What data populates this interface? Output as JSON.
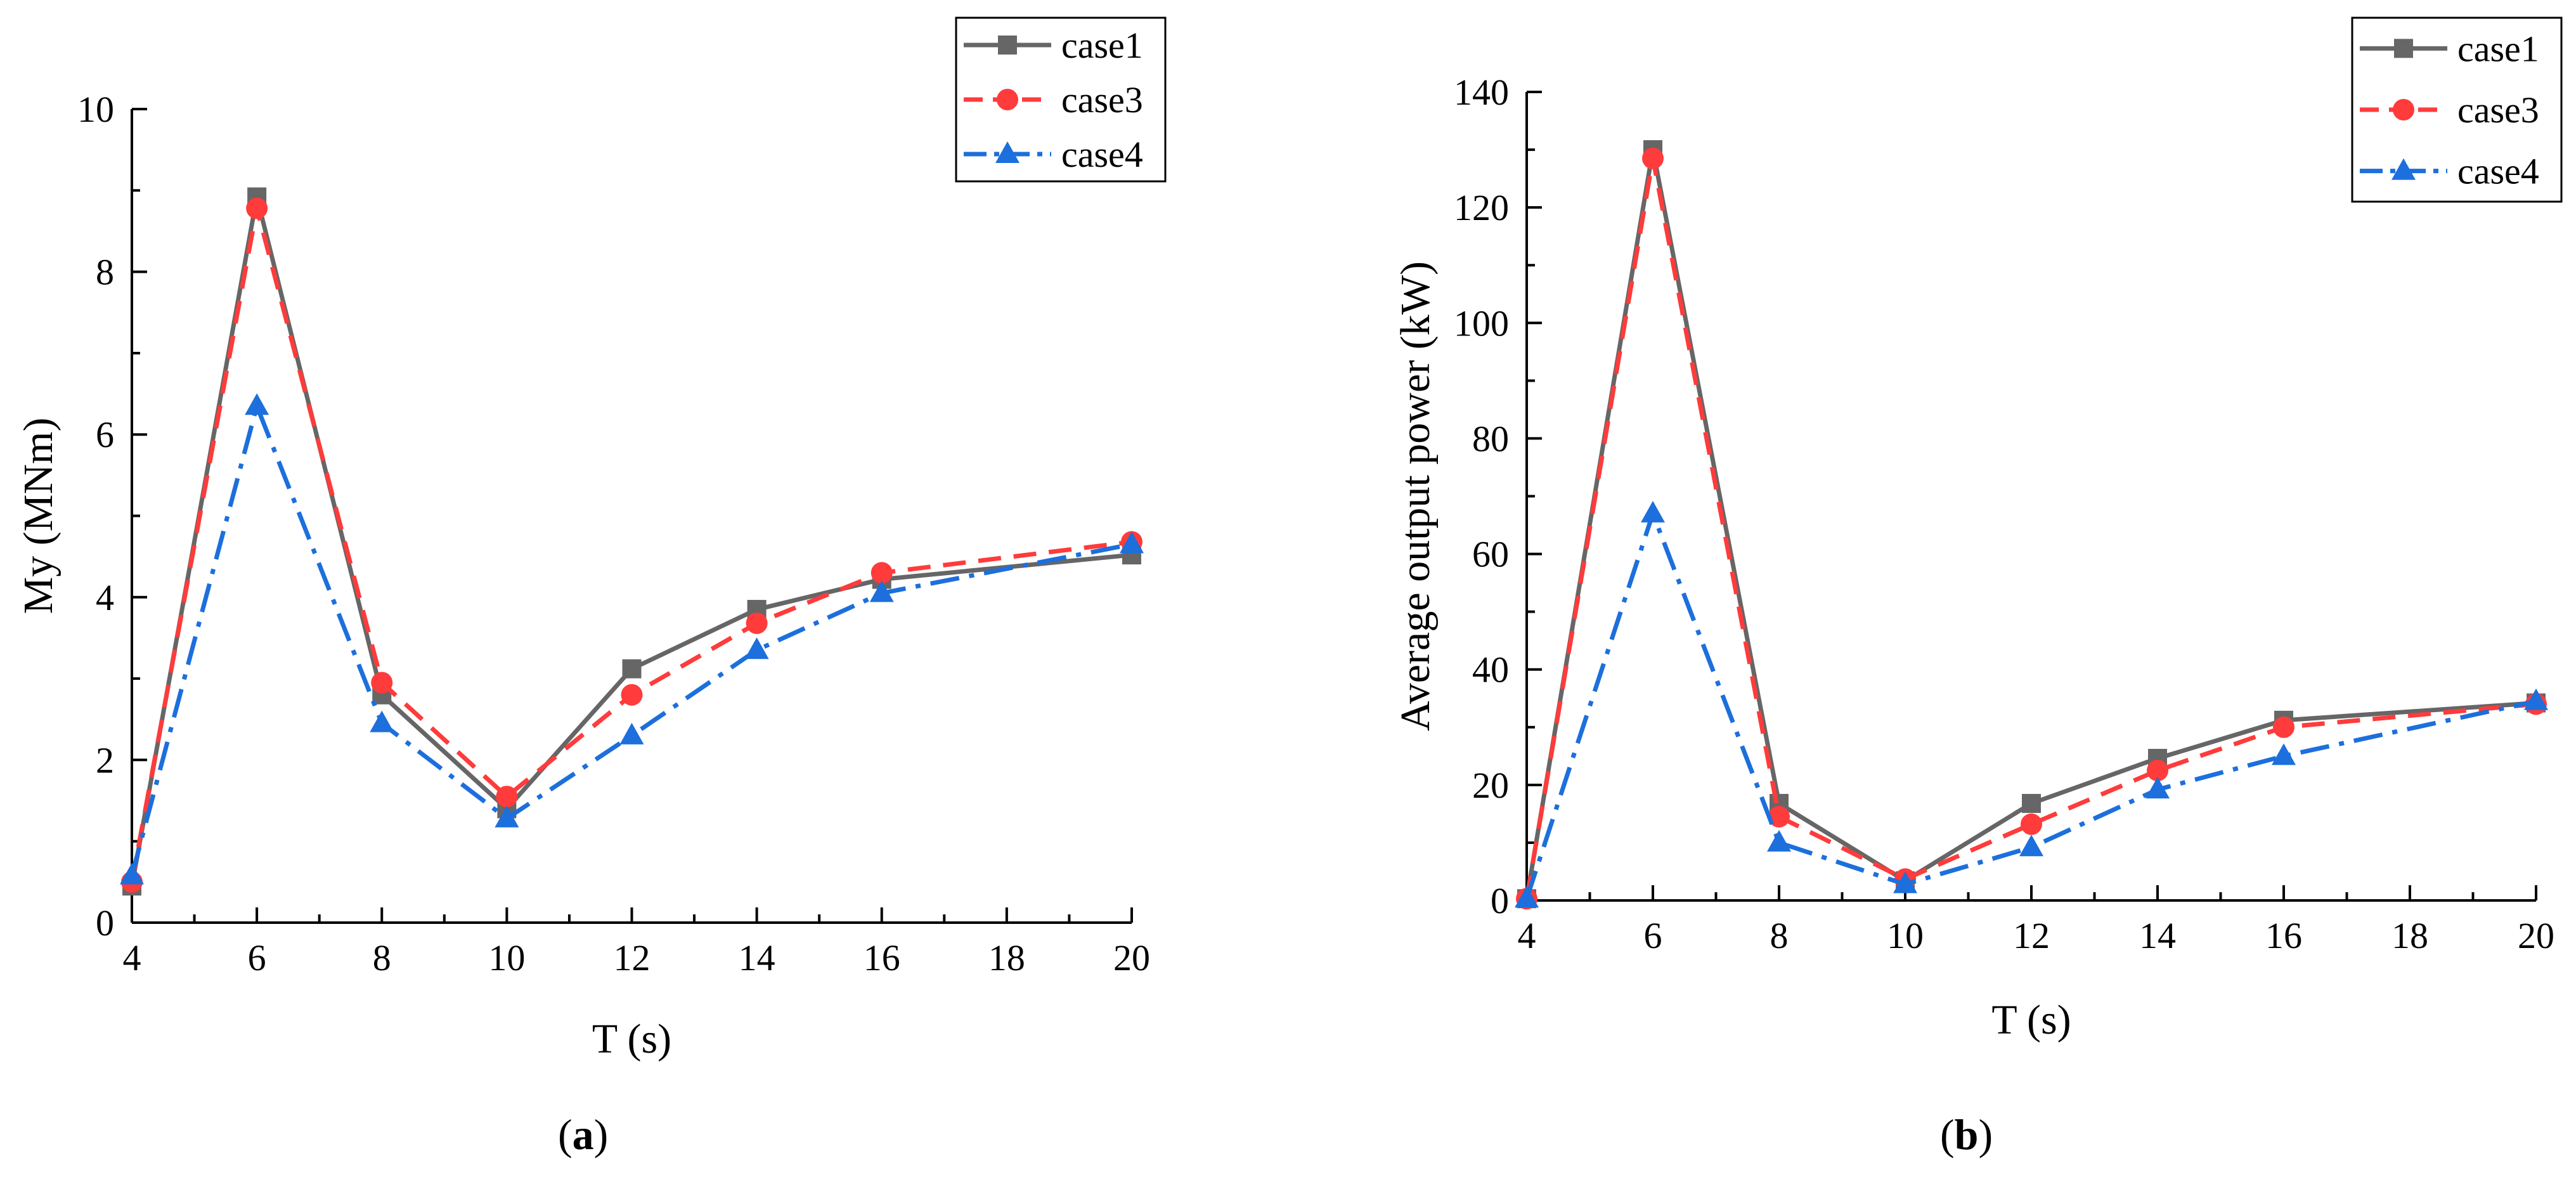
{
  "chart_data": [
    {
      "type": "line",
      "panel": "a",
      "panel_label": "a",
      "xlabel": "T (s)",
      "ylabel": "My (MNm)",
      "xlim": [
        4,
        20
      ],
      "ylim": [
        0,
        10
      ],
      "xticks": [
        4,
        6,
        8,
        10,
        12,
        14,
        16,
        18,
        20
      ],
      "yticks": [
        0,
        2,
        4,
        6,
        8,
        10
      ],
      "x": [
        4,
        6,
        8,
        10,
        12,
        14,
        16,
        20
      ],
      "series": [
        {
          "name": "case1",
          "color": "#666666",
          "values": [
            0.45,
            8.92,
            2.8,
            1.4,
            3.12,
            3.85,
            4.22,
            4.52
          ]
        },
        {
          "name": "case3",
          "color": "#ff3b3b",
          "values": [
            0.5,
            8.78,
            2.95,
            1.55,
            2.8,
            3.68,
            4.3,
            4.68
          ]
        },
        {
          "name": "case4",
          "color": "#1c6fdc",
          "values": [
            0.58,
            6.35,
            2.45,
            1.28,
            2.3,
            3.35,
            4.05,
            4.65
          ]
        }
      ],
      "legend": "top-right"
    },
    {
      "type": "line",
      "panel": "b",
      "panel_label": "b",
      "xlabel": "T (s)",
      "ylabel": "Average output power (kW)",
      "xlim": [
        4,
        20
      ],
      "ylim": [
        0,
        140
      ],
      "xticks": [
        4,
        6,
        8,
        10,
        12,
        14,
        16,
        18,
        20
      ],
      "yticks": [
        0,
        20,
        40,
        60,
        80,
        100,
        120,
        140
      ],
      "x": [
        4,
        6,
        8,
        10,
        12,
        14,
        16,
        20
      ],
      "series": [
        {
          "name": "case1",
          "color": "#666666",
          "values": [
            0.3,
            130.0,
            16.8,
            3.4,
            16.8,
            24.6,
            31.2,
            34.2
          ]
        },
        {
          "name": "case3",
          "color": "#ff3b3b",
          "values": [
            0.3,
            128.5,
            14.5,
            3.7,
            13.2,
            22.5,
            30.0,
            34.0
          ]
        },
        {
          "name": "case4",
          "color": "#1c6fdc",
          "values": [
            0.3,
            67.0,
            10.0,
            2.8,
            9.2,
            19.2,
            25.0,
            34.5
          ]
        }
      ],
      "legend": "top-right"
    }
  ]
}
